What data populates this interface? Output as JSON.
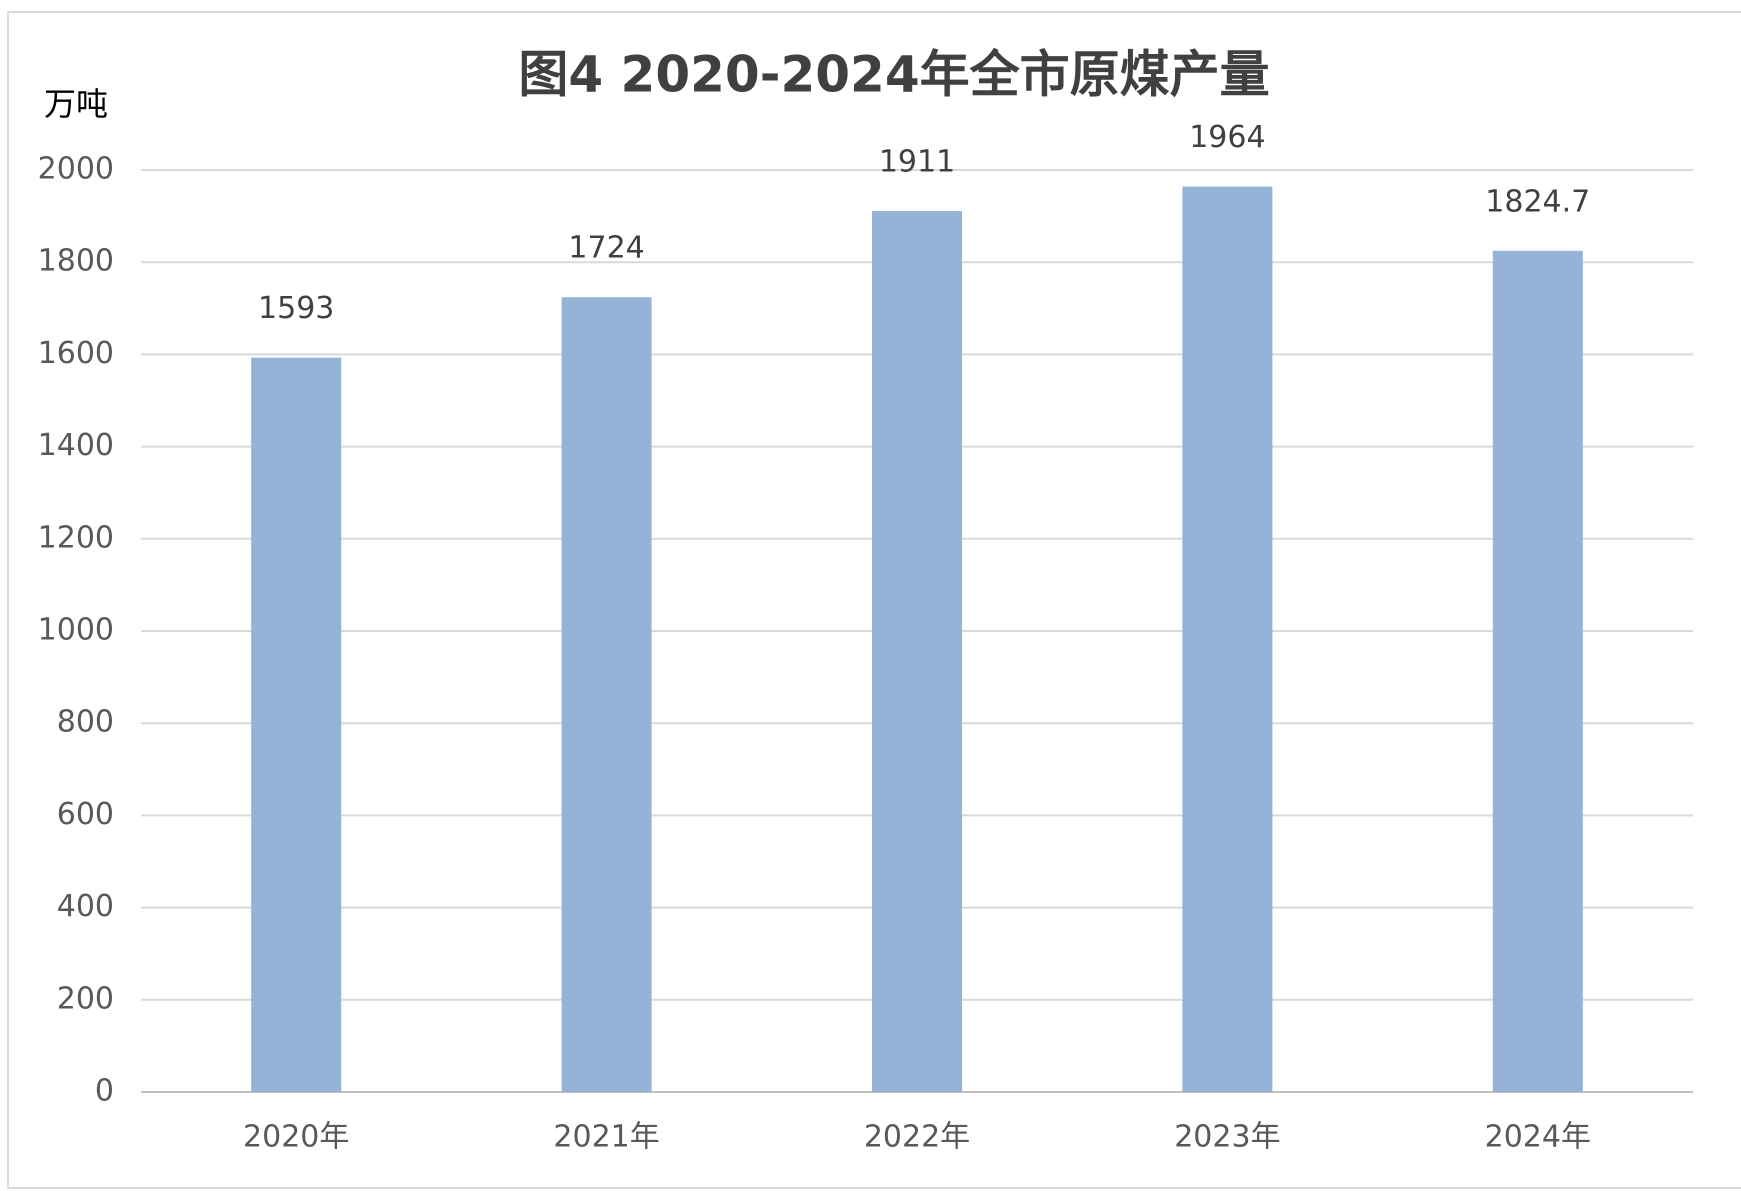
{
  "chart_data": {
    "type": "bar",
    "title": "图4  2020-2024年全市原煤产量",
    "y_label": "万吨",
    "categories": [
      "2020年",
      "2021年",
      "2022年",
      "2023年",
      "2024年"
    ],
    "values": [
      1593,
      1724,
      1911,
      1964,
      1824.7
    ],
    "color": "#95b3d7",
    "ylim": [
      0,
      2000
    ],
    "yticks": [
      0,
      200,
      400,
      600,
      800,
      1000,
      1200,
      1400,
      1600,
      1800,
      2000
    ],
    "grid": true
  }
}
